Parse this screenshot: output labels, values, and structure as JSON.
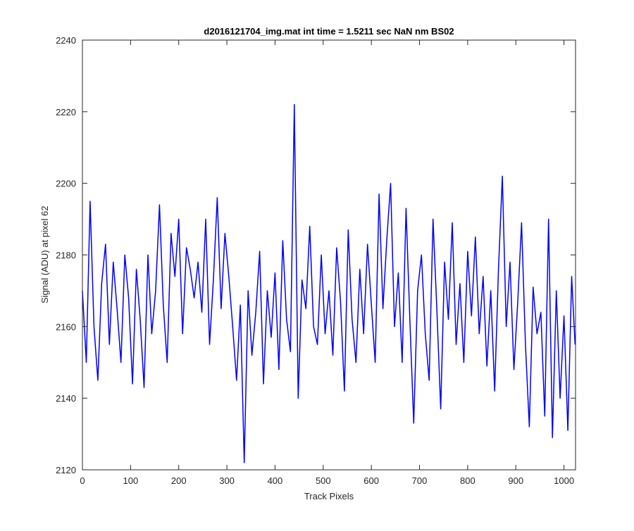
{
  "chart_data": {
    "type": "line",
    "title": "d2016121704_img.mat int time = 1.5211 sec  NaN nm BS02",
    "xlabel": "Track Pixels",
    "ylabel": "Signal (ADU) at pixel 62",
    "xlim": [
      0,
      1024
    ],
    "ylim": [
      2120,
      2240
    ],
    "xticks": [
      0,
      100,
      200,
      300,
      400,
      500,
      600,
      700,
      800,
      900,
      1000
    ],
    "yticks": [
      2120,
      2140,
      2160,
      2180,
      2200,
      2220,
      2240
    ],
    "grid": false,
    "legend": "none",
    "line_color": "#0000ff",
    "series": [
      {
        "x": [
          0,
          8,
          16,
          24,
          32,
          40,
          48,
          56,
          64,
          72,
          80,
          88,
          96,
          104,
          112,
          120,
          128,
          136,
          144,
          152,
          160,
          168,
          176,
          184,
          192,
          200,
          208,
          216,
          224,
          232,
          240,
          248,
          256,
          264,
          272,
          280,
          288,
          296,
          304,
          312,
          320,
          328,
          336,
          344,
          352,
          360,
          368,
          376,
          384,
          392,
          400,
          408,
          416,
          424,
          432,
          440,
          448,
          456,
          464,
          472,
          480,
          488,
          496,
          504,
          512,
          520,
          528,
          536,
          544,
          552,
          560,
          568,
          576,
          584,
          592,
          600,
          608,
          616,
          624,
          632,
          640,
          648,
          656,
          664,
          672,
          680,
          688,
          696,
          704,
          712,
          720,
          728,
          736,
          744,
          752,
          760,
          768,
          776,
          784,
          792,
          800,
          808,
          816,
          824,
          832,
          840,
          848,
          856,
          864,
          872,
          880,
          888,
          896,
          904,
          912,
          920,
          928,
          936,
          944,
          952,
          960,
          968,
          976,
          984,
          992,
          1000,
          1008,
          1016,
          1023
        ],
        "values": [
          2170,
          2150,
          2195,
          2160,
          2145,
          2172,
          2183,
          2155,
          2178,
          2165,
          2150,
          2180,
          2168,
          2144,
          2176,
          2162,
          2143,
          2180,
          2158,
          2170,
          2194,
          2166,
          2150,
          2186,
          2174,
          2190,
          2158,
          2182,
          2176,
          2168,
          2178,
          2164,
          2190,
          2155,
          2173,
          2196,
          2165,
          2186,
          2174,
          2160,
          2145,
          2166,
          2122,
          2170,
          2152,
          2164,
          2181,
          2144,
          2170,
          2157,
          2175,
          2148,
          2184,
          2162,
          2153,
          2222,
          2140,
          2173,
          2165,
          2188,
          2160,
          2155,
          2180,
          2158,
          2170,
          2152,
          2182,
          2167,
          2142,
          2187,
          2162,
          2150,
          2176,
          2158,
          2183,
          2166,
          2150,
          2197,
          2165,
          2184,
          2200,
          2160,
          2175,
          2150,
          2193,
          2162,
          2133,
          2170,
          2180,
          2158,
          2145,
          2190,
          2165,
          2137,
          2178,
          2162,
          2189,
          2155,
          2172,
          2150,
          2181,
          2163,
          2185,
          2158,
          2174,
          2149,
          2170,
          2142,
          2176,
          2202,
          2160,
          2178,
          2148,
          2167,
          2189,
          2155,
          2132,
          2171,
          2158,
          2164,
          2135,
          2190,
          2129,
          2170,
          2140,
          2163,
          2131,
          2174,
          2155
        ]
      }
    ]
  }
}
